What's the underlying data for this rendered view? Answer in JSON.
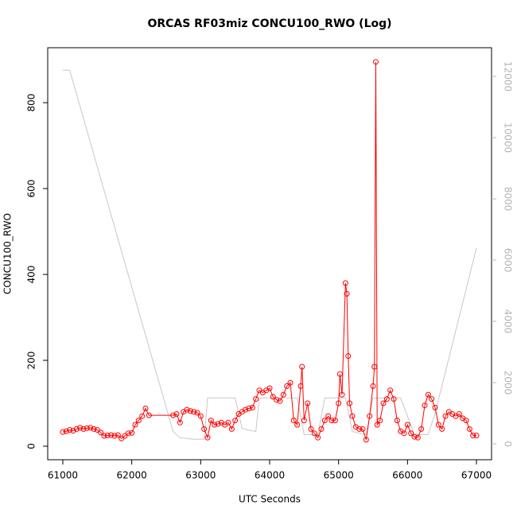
{
  "chart_data": {
    "type": "line",
    "title": "ORCAS RF03miz CONCU100_RWO (Log)",
    "x_label": "UTC Seconds",
    "y_label": "CONCU100_RWO",
    "xlim": [
      60781,
      67219
    ],
    "xticks": [
      61000,
      62000,
      63000,
      64000,
      65000,
      66000,
      67000
    ],
    "ylim": [
      -31.5,
      928
    ],
    "yticks": [
      0,
      200,
      400,
      600,
      800
    ],
    "y2lim": [
      -519,
      12935
    ],
    "y2ticks": [
      0,
      2000,
      4000,
      6000,
      8000,
      10000,
      12000
    ],
    "y2_color": "#b4b4b4",
    "series": [
      {
        "color": "#ff0000",
        "markers": true,
        "x": [
          61000,
          61050,
          61100,
          61150,
          61200,
          61250,
          61300,
          61350,
          61400,
          61450,
          61500,
          61550,
          61600,
          61650,
          61700,
          61750,
          61800,
          61850,
          61900,
          61950,
          62000,
          62050,
          62100,
          62150,
          62200,
          62250,
          62600,
          62650,
          62700,
          62750,
          62800,
          62850,
          62900,
          62950,
          63000,
          63050,
          63100,
          63150,
          63200,
          63250,
          63300,
          63350,
          63400,
          63450,
          63500,
          63550,
          63600,
          63650,
          63700,
          63750,
          63800,
          63850,
          63900,
          63950,
          64000,
          64050,
          64100,
          64150,
          64200,
          64250,
          64300,
          64350,
          64400,
          64450,
          64470,
          64500,
          64550,
          64600,
          64650,
          64700,
          64750,
          64800,
          64850,
          64900,
          64950,
          65000,
          65020,
          65050,
          65100,
          65120,
          65140,
          65160,
          65200,
          65250,
          65300,
          65350,
          65400,
          65450,
          65500,
          65520,
          65540,
          65560,
          65600,
          65650,
          65700,
          65750,
          65800,
          65850,
          65900,
          65950,
          66000,
          66050,
          66100,
          66150,
          66200,
          66250,
          66300,
          66350,
          66400,
          66450,
          66500,
          66550,
          66600,
          66650,
          66700,
          66750,
          66800,
          66850,
          66900,
          66950,
          67000
        ],
        "values": [
          33,
          35,
          38,
          36,
          40,
          43,
          40,
          42,
          43,
          40,
          38,
          32,
          24,
          25,
          26,
          24,
          26,
          18,
          24,
          30,
          31,
          50,
          60,
          70,
          88,
          72,
          72,
          75,
          55,
          80,
          85,
          82,
          80,
          78,
          70,
          40,
          20,
          60,
          50,
          52,
          55,
          50,
          55,
          40,
          60,
          75,
          80,
          85,
          88,
          90,
          110,
          130,
          125,
          130,
          135,
          115,
          108,
          105,
          120,
          140,
          148,
          60,
          50,
          140,
          185,
          60,
          100,
          40,
          30,
          20,
          40,
          60,
          70,
          60,
          60,
          100,
          168,
          120,
          380,
          355,
          210,
          100,
          70,
          45,
          40,
          40,
          15,
          70,
          140,
          185,
          895,
          50,
          60,
          100,
          110,
          130,
          110,
          60,
          35,
          30,
          50,
          30,
          22,
          20,
          40,
          95,
          120,
          110,
          90,
          50,
          40,
          70,
          80,
          75,
          70,
          75,
          65,
          60,
          40,
          25,
          25
        ]
      },
      {
        "color": "#c8c8c8",
        "axis": "y2",
        "markers": false,
        "x": [
          61000,
          61100,
          62600,
          62700,
          62900,
          63050,
          63100,
          63500,
          63600,
          63800,
          63850,
          64400,
          64500,
          64700,
          64800,
          65100,
          65200,
          65400,
          65500,
          65900,
          66100,
          66300,
          66400,
          67000
        ],
        "values": [
          12200,
          12200,
          400,
          200,
          150,
          150,
          1500,
          1500,
          500,
          400,
          1500,
          1500,
          300,
          300,
          1500,
          1500,
          400,
          300,
          1500,
          1500,
          300,
          300,
          1000,
          6400
        ]
      }
    ]
  }
}
